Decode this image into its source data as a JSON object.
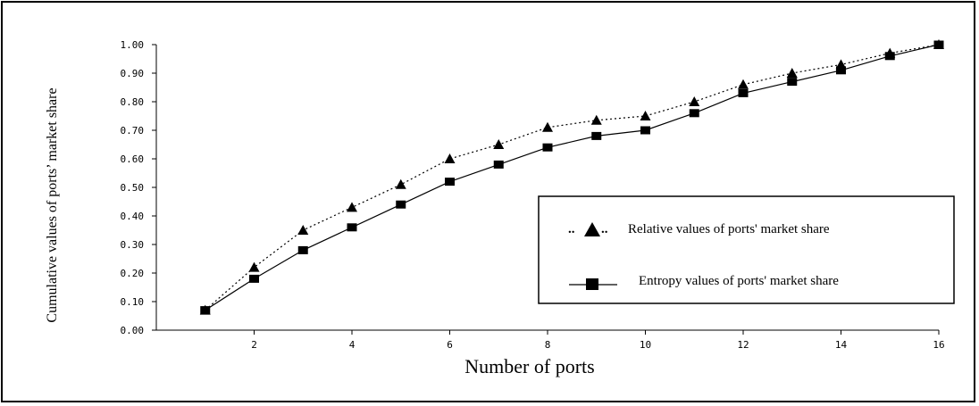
{
  "chart_data": {
    "type": "line",
    "title": "",
    "xlabel": "Number of ports",
    "ylabel": "Cumulative values of ports’ market share",
    "xlim": [
      0,
      16
    ],
    "ylim": [
      0,
      1.0
    ],
    "x_ticks": [
      2,
      4,
      6,
      8,
      10,
      12,
      14,
      16
    ],
    "x_tick_labels": [
      "2",
      "4",
      "6",
      "8",
      "10",
      "12",
      "14",
      "16"
    ],
    "y_ticks": [
      0.0,
      0.1,
      0.2,
      0.3,
      0.4,
      0.5,
      0.6,
      0.7,
      0.8,
      0.9,
      1.0
    ],
    "y_tick_labels": [
      "0.00",
      "0.10",
      "0.20",
      "0.30",
      "0.40",
      "0.50",
      "0.60",
      "0.70",
      "0.80",
      "0.90",
      "1.00"
    ],
    "grid": false,
    "legend_position": "right-center",
    "x": [
      1,
      2,
      3,
      4,
      5,
      6,
      7,
      8,
      9,
      10,
      11,
      12,
      13,
      14,
      15,
      16
    ],
    "series": [
      {
        "name": "Relative values of ports' market share",
        "marker": "triangle",
        "line_style": "dotted",
        "values": [
          0.07,
          0.22,
          0.35,
          0.43,
          0.51,
          0.6,
          0.65,
          0.71,
          0.735,
          0.75,
          0.8,
          0.86,
          0.9,
          0.93,
          0.97,
          1.0
        ]
      },
      {
        "name": "Entropy values of ports' market share",
        "marker": "square",
        "line_style": "solid",
        "values": [
          0.07,
          0.18,
          0.28,
          0.36,
          0.44,
          0.52,
          0.58,
          0.64,
          0.68,
          0.7,
          0.76,
          0.83,
          0.87,
          0.91,
          0.96,
          1.0
        ]
      }
    ],
    "legend": {
      "entries": [
        {
          "prefix": "..",
          "suffix": "..",
          "label": "Relative values of ports' market share"
        },
        {
          "label": "Entropy values of ports' market share"
        }
      ]
    }
  }
}
